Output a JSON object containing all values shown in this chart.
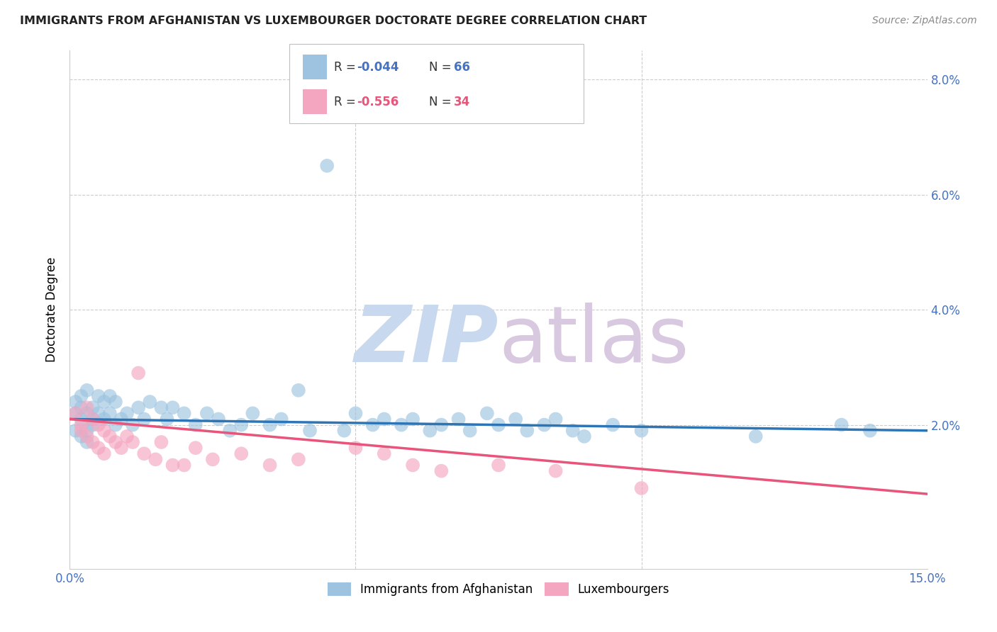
{
  "title": "IMMIGRANTS FROM AFGHANISTAN VS LUXEMBOURGER DOCTORATE DEGREE CORRELATION CHART",
  "source": "Source: ZipAtlas.com",
  "ylabel": "Doctorate Degree",
  "xlim": [
    0.0,
    0.15
  ],
  "ylim": [
    -0.005,
    0.085
  ],
  "blue_color": "#9dc3e0",
  "pink_color": "#f4a6c0",
  "blue_line_color": "#2e75b6",
  "pink_line_color": "#e8547a",
  "watermark_zip_color": "#c8d8ee",
  "watermark_atlas_color": "#d8c8e0",
  "legend_r1": "-0.044",
  "legend_n1": "66",
  "legend_r2": "-0.556",
  "legend_n2": "34",
  "blue_x": [
    0.001,
    0.001,
    0.001,
    0.002,
    0.002,
    0.002,
    0.002,
    0.003,
    0.003,
    0.003,
    0.003,
    0.004,
    0.004,
    0.004,
    0.005,
    0.005,
    0.006,
    0.006,
    0.007,
    0.007,
    0.008,
    0.008,
    0.009,
    0.01,
    0.011,
    0.012,
    0.013,
    0.014,
    0.016,
    0.017,
    0.018,
    0.02,
    0.022,
    0.024,
    0.026,
    0.028,
    0.03,
    0.032,
    0.035,
    0.037,
    0.04,
    0.042,
    0.045,
    0.048,
    0.05,
    0.053,
    0.055,
    0.058,
    0.06,
    0.063,
    0.065,
    0.068,
    0.07,
    0.073,
    0.075,
    0.078,
    0.08,
    0.083,
    0.085,
    0.088,
    0.09,
    0.095,
    0.1,
    0.12,
    0.135,
    0.14
  ],
  "blue_y": [
    0.022,
    0.024,
    0.019,
    0.025,
    0.021,
    0.018,
    0.023,
    0.022,
    0.026,
    0.019,
    0.017,
    0.021,
    0.023,
    0.02,
    0.022,
    0.025,
    0.024,
    0.021,
    0.025,
    0.022,
    0.02,
    0.024,
    0.021,
    0.022,
    0.02,
    0.023,
    0.021,
    0.024,
    0.023,
    0.021,
    0.023,
    0.022,
    0.02,
    0.022,
    0.021,
    0.019,
    0.02,
    0.022,
    0.02,
    0.021,
    0.026,
    0.019,
    0.065,
    0.019,
    0.022,
    0.02,
    0.021,
    0.02,
    0.021,
    0.019,
    0.02,
    0.021,
    0.019,
    0.022,
    0.02,
    0.021,
    0.019,
    0.02,
    0.021,
    0.019,
    0.018,
    0.02,
    0.019,
    0.018,
    0.02,
    0.019
  ],
  "pink_x": [
    0.001,
    0.002,
    0.002,
    0.003,
    0.003,
    0.004,
    0.004,
    0.005,
    0.005,
    0.006,
    0.006,
    0.007,
    0.008,
    0.009,
    0.01,
    0.011,
    0.012,
    0.013,
    0.015,
    0.016,
    0.018,
    0.02,
    0.022,
    0.025,
    0.03,
    0.035,
    0.04,
    0.05,
    0.055,
    0.06,
    0.065,
    0.075,
    0.085,
    0.1
  ],
  "pink_y": [
    0.022,
    0.02,
    0.019,
    0.023,
    0.018,
    0.021,
    0.017,
    0.02,
    0.016,
    0.019,
    0.015,
    0.018,
    0.017,
    0.016,
    0.018,
    0.017,
    0.029,
    0.015,
    0.014,
    0.017,
    0.013,
    0.013,
    0.016,
    0.014,
    0.015,
    0.013,
    0.014,
    0.016,
    0.015,
    0.013,
    0.012,
    0.013,
    0.012,
    0.009
  ]
}
